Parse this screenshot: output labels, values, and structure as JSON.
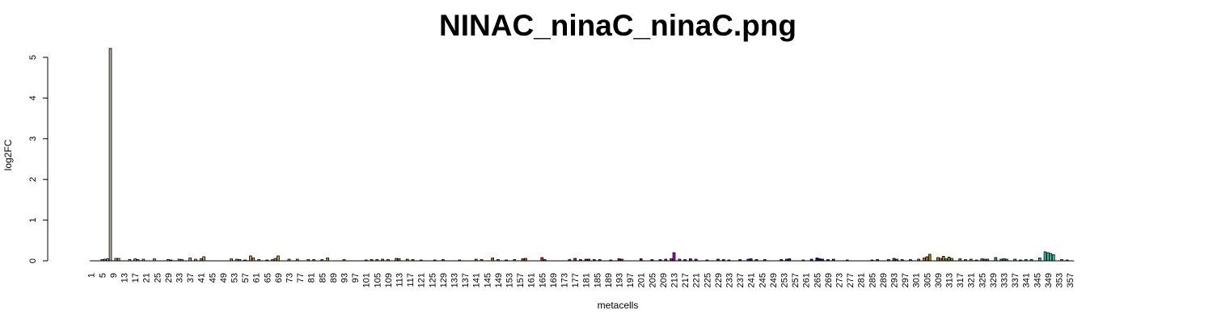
{
  "chart_data": {
    "type": "bar",
    "title": "NINAC_ninaC_ninaC.png",
    "xlabel": "metacells",
    "ylabel": "log2FC",
    "ylim": [
      0,
      5
    ],
    "yticks": [
      0,
      1,
      2,
      3,
      4,
      5
    ],
    "n": 358,
    "x_tick_labels": [
      "1",
      "5",
      "9",
      "13",
      "17",
      "21",
      "25",
      "29",
      "33",
      "37",
      "41",
      "45",
      "49",
      "53",
      "57",
      "61",
      "65",
      "69",
      "73",
      "77",
      "81",
      "85",
      "89",
      "93",
      "97",
      "101",
      "105",
      "109",
      "113",
      "117",
      "121",
      "125",
      "129",
      "133",
      "137",
      "141",
      "145",
      "149",
      "153",
      "157",
      "161",
      "165",
      "169",
      "173",
      "177",
      "181",
      "185",
      "189",
      "193",
      "197",
      "201",
      "205",
      "209",
      "213",
      "217",
      "221",
      "225",
      "229",
      "233",
      "237",
      "241",
      "245",
      "249",
      "253",
      "257",
      "261",
      "265",
      "269",
      "273",
      "277",
      "281",
      "285",
      "289",
      "293",
      "297",
      "301",
      "305",
      "309",
      "313",
      "317",
      "321",
      "325",
      "329",
      "333",
      "337",
      "341",
      "345",
      "349",
      "353",
      "357"
    ],
    "bar_values": [
      {
        "x": 5,
        "value": 0.03
      },
      {
        "x": 6,
        "value": 0.04
      },
      {
        "x": 7,
        "value": 0.05
      },
      {
        "x": 8,
        "value": 5.22
      },
      {
        "x": 10,
        "value": 0.06
      },
      {
        "x": 11,
        "value": 0.06
      },
      {
        "x": 15,
        "value": 0.03
      },
      {
        "x": 17,
        "value": 0.05
      },
      {
        "x": 18,
        "value": 0.03
      },
      {
        "x": 20,
        "value": 0.04
      },
      {
        "x": 24,
        "value": 0.05
      },
      {
        "x": 29,
        "value": 0.03
      },
      {
        "x": 30,
        "value": 0.02
      },
      {
        "x": 33,
        "value": 0.04
      },
      {
        "x": 34,
        "value": 0.03
      },
      {
        "x": 37,
        "value": 0.07
      },
      {
        "x": 39,
        "value": 0.04
      },
      {
        "x": 41,
        "value": 0.05
      },
      {
        "x": 42,
        "value": 0.1
      },
      {
        "x": 52,
        "value": 0.05
      },
      {
        "x": 54,
        "value": 0.04
      },
      {
        "x": 55,
        "value": 0.03
      },
      {
        "x": 57,
        "value": 0.02
      },
      {
        "x": 59,
        "value": 0.12
      },
      {
        "x": 60,
        "value": 0.07
      },
      {
        "x": 62,
        "value": 0.03
      },
      {
        "x": 65,
        "value": 0.02
      },
      {
        "x": 67,
        "value": 0.03
      },
      {
        "x": 68,
        "value": 0.06
      },
      {
        "x": 69,
        "value": 0.12
      },
      {
        "x": 73,
        "value": 0.04
      },
      {
        "x": 76,
        "value": 0.04
      },
      {
        "x": 80,
        "value": 0.03
      },
      {
        "x": 82,
        "value": 0.03
      },
      {
        "x": 85,
        "value": 0.03
      },
      {
        "x": 87,
        "value": 0.07
      },
      {
        "x": 93,
        "value": 0.03
      },
      {
        "x": 101,
        "value": 0.02
      },
      {
        "x": 103,
        "value": 0.03
      },
      {
        "x": 105,
        "value": 0.03
      },
      {
        "x": 107,
        "value": 0.04
      },
      {
        "x": 109,
        "value": 0.03
      },
      {
        "x": 112,
        "value": 0.06
      },
      {
        "x": 113,
        "value": 0.05
      },
      {
        "x": 116,
        "value": 0.04
      },
      {
        "x": 118,
        "value": 0.03
      },
      {
        "x": 121,
        "value": 0.02
      },
      {
        "x": 126,
        "value": 0.02
      },
      {
        "x": 129,
        "value": 0.03
      },
      {
        "x": 135,
        "value": 0.02
      },
      {
        "x": 141,
        "value": 0.04
      },
      {
        "x": 143,
        "value": 0.03
      },
      {
        "x": 147,
        "value": 0.07
      },
      {
        "x": 149,
        "value": 0.03
      },
      {
        "x": 152,
        "value": 0.02
      },
      {
        "x": 155,
        "value": 0.03
      },
      {
        "x": 158,
        "value": 0.05
      },
      {
        "x": 159,
        "value": 0.06
      },
      {
        "x": 165,
        "value": 0.08
      },
      {
        "x": 166,
        "value": 0.03
      },
      {
        "x": 175,
        "value": 0.03
      },
      {
        "x": 177,
        "value": 0.06
      },
      {
        "x": 179,
        "value": 0.03
      },
      {
        "x": 181,
        "value": 0.04
      },
      {
        "x": 182,
        "value": 0.04
      },
      {
        "x": 184,
        "value": 0.03
      },
      {
        "x": 186,
        "value": 0.03
      },
      {
        "x": 190,
        "value": 0.02
      },
      {
        "x": 193,
        "value": 0.05
      },
      {
        "x": 194,
        "value": 0.04
      },
      {
        "x": 201,
        "value": 0.05
      },
      {
        "x": 205,
        "value": 0.03
      },
      {
        "x": 208,
        "value": 0.03
      },
      {
        "x": 210,
        "value": 0.04
      },
      {
        "x": 212,
        "value": 0.05
      },
      {
        "x": 213,
        "value": 0.2
      },
      {
        "x": 215,
        "value": 0.04
      },
      {
        "x": 217,
        "value": 0.03
      },
      {
        "x": 219,
        "value": 0.05
      },
      {
        "x": 221,
        "value": 0.04
      },
      {
        "x": 225,
        "value": 0.02
      },
      {
        "x": 229,
        "value": 0.04
      },
      {
        "x": 231,
        "value": 0.03
      },
      {
        "x": 233,
        "value": 0.02
      },
      {
        "x": 237,
        "value": 0.03
      },
      {
        "x": 240,
        "value": 0.04
      },
      {
        "x": 241,
        "value": 0.05
      },
      {
        "x": 243,
        "value": 0.03
      },
      {
        "x": 246,
        "value": 0.03
      },
      {
        "x": 252,
        "value": 0.03
      },
      {
        "x": 254,
        "value": 0.04
      },
      {
        "x": 255,
        "value": 0.05
      },
      {
        "x": 260,
        "value": 0.02
      },
      {
        "x": 263,
        "value": 0.04
      },
      {
        "x": 265,
        "value": 0.07
      },
      {
        "x": 266,
        "value": 0.05
      },
      {
        "x": 267,
        "value": 0.04
      },
      {
        "x": 269,
        "value": 0.03
      },
      {
        "x": 271,
        "value": 0.04
      },
      {
        "x": 276,
        "value": 0.02
      },
      {
        "x": 285,
        "value": 0.02
      },
      {
        "x": 287,
        "value": 0.03
      },
      {
        "x": 291,
        "value": 0.03
      },
      {
        "x": 293,
        "value": 0.06
      },
      {
        "x": 294,
        "value": 0.04
      },
      {
        "x": 296,
        "value": 0.03
      },
      {
        "x": 299,
        "value": 0.03
      },
      {
        "x": 302,
        "value": 0.04
      },
      {
        "x": 304,
        "value": 0.07
      },
      {
        "x": 305,
        "value": 0.1
      },
      {
        "x": 306,
        "value": 0.16
      },
      {
        "x": 309,
        "value": 0.08
      },
      {
        "x": 310,
        "value": 0.06
      },
      {
        "x": 311,
        "value": 0.11
      },
      {
        "x": 312,
        "value": 0.05
      },
      {
        "x": 313,
        "value": 0.09
      },
      {
        "x": 314,
        "value": 0.06
      },
      {
        "x": 317,
        "value": 0.05
      },
      {
        "x": 319,
        "value": 0.03
      },
      {
        "x": 321,
        "value": 0.04
      },
      {
        "x": 323,
        "value": 0.02
      },
      {
        "x": 325,
        "value": 0.05
      },
      {
        "x": 326,
        "value": 0.04
      },
      {
        "x": 327,
        "value": 0.04
      },
      {
        "x": 330,
        "value": 0.08
      },
      {
        "x": 332,
        "value": 0.04
      },
      {
        "x": 333,
        "value": 0.05
      },
      {
        "x": 334,
        "value": 0.04
      },
      {
        "x": 337,
        "value": 0.04
      },
      {
        "x": 339,
        "value": 0.02
      },
      {
        "x": 341,
        "value": 0.03
      },
      {
        "x": 343,
        "value": 0.03
      },
      {
        "x": 346,
        "value": 0.07
      },
      {
        "x": 348,
        "value": 0.22
      },
      {
        "x": 349,
        "value": 0.2
      },
      {
        "x": 350,
        "value": 0.18
      },
      {
        "x": 351,
        "value": 0.15
      },
      {
        "x": 354,
        "value": 0.03
      },
      {
        "x": 356,
        "value": 0.02
      }
    ],
    "color_stops": [
      {
        "x": 1,
        "color": "#9a8e80"
      },
      {
        "x": 8,
        "color": "#b8aca0"
      },
      {
        "x": 30,
        "color": "#c4a882"
      },
      {
        "x": 55,
        "color": "#c8a060"
      },
      {
        "x": 75,
        "color": "#c8943a"
      },
      {
        "x": 110,
        "color": "#b87e28"
      },
      {
        "x": 145,
        "color": "#d47a1a"
      },
      {
        "x": 165,
        "color": "#d03a10"
      },
      {
        "x": 185,
        "color": "#c01818"
      },
      {
        "x": 200,
        "color": "#b0103a"
      },
      {
        "x": 213,
        "color": "#a010c0"
      },
      {
        "x": 225,
        "color": "#6a18c8"
      },
      {
        "x": 245,
        "color": "#2a2ad0"
      },
      {
        "x": 265,
        "color": "#1020c8"
      },
      {
        "x": 290,
        "color": "#4a4a80"
      },
      {
        "x": 306,
        "color": "#b08a20"
      },
      {
        "x": 320,
        "color": "#8a9a40"
      },
      {
        "x": 335,
        "color": "#409a70"
      },
      {
        "x": 350,
        "color": "#30c8b0"
      },
      {
        "x": 358,
        "color": "#30d0b8"
      }
    ],
    "grid": false,
    "legend": "none"
  }
}
